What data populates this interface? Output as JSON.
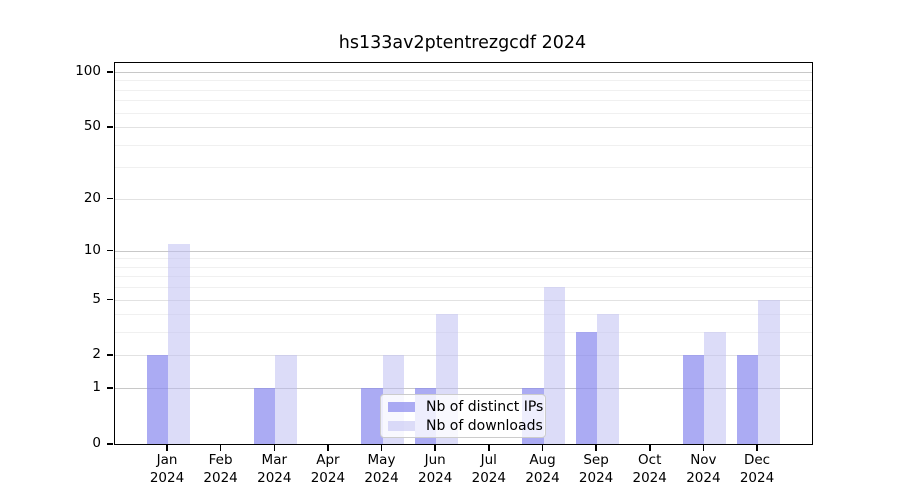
{
  "title": "hs133av2ptentrezgcdf 2024",
  "chart_data": {
    "type": "bar",
    "title": "hs133av2ptentrezgcdf 2024",
    "categories": [
      "Jan",
      "Feb",
      "Mar",
      "Apr",
      "May",
      "Jun",
      "Jul",
      "Aug",
      "Sep",
      "Oct",
      "Nov",
      "Dec"
    ],
    "year": "2024",
    "series": [
      {
        "name": "Nb of distinct IPs",
        "color": "#8a8aee",
        "alpha": 0.72,
        "values": [
          2,
          0,
          1,
          0,
          1,
          1,
          0,
          1,
          3,
          0,
          2,
          2
        ]
      },
      {
        "name": "Nb of downloads",
        "color": "#b9b9f1",
        "alpha": 0.5,
        "values": [
          11,
          0,
          2,
          0,
          2,
          4,
          0,
          6,
          4,
          0,
          3,
          5
        ]
      }
    ],
    "xlabel": "",
    "ylabel": "",
    "yscale": "log1p",
    "ylim": [
      0,
      100
    ],
    "yticks": [
      0,
      1,
      2,
      5,
      10,
      20,
      50,
      100
    ],
    "ytick_labels": [
      "0",
      "1",
      "2",
      "5",
      "10",
      "20",
      "50",
      "100"
    ],
    "minor_gridlines": [
      3,
      4,
      6,
      7,
      8,
      9,
      30,
      40,
      60,
      70,
      80,
      90
    ],
    "mid_gridlines": [
      2,
      5,
      20,
      50
    ],
    "decade_gridlines": [
      1,
      10,
      100
    ],
    "grid": true,
    "legend_position": "lower center",
    "colors": {
      "background": "#ffffff",
      "axis": "#000000",
      "grid_major": "#c8c8c8",
      "grid_minor": "#f0f0f0",
      "legend_border": "#cccccc"
    }
  }
}
